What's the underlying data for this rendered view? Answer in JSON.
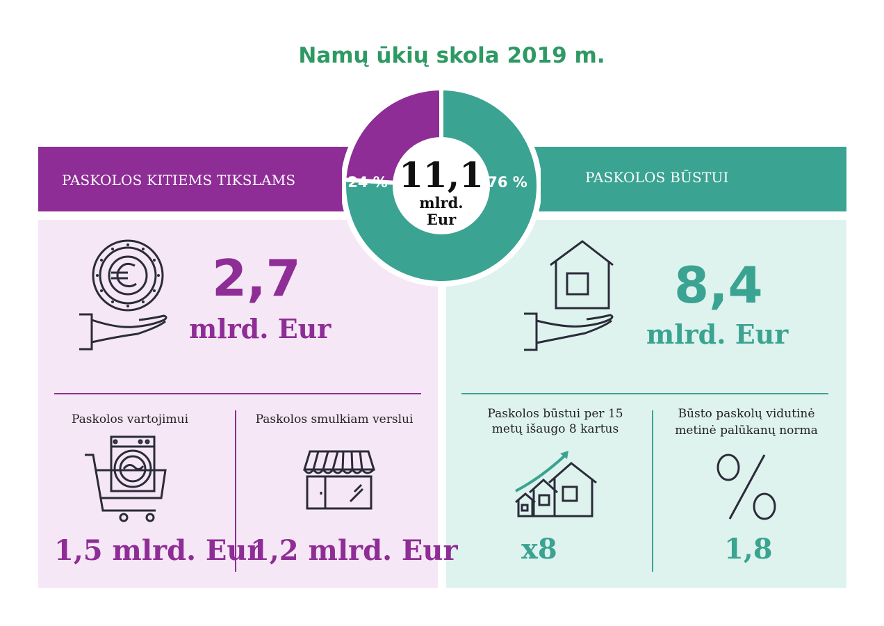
{
  "title": "Namų ūkių skola 2019 m.",
  "colors": {
    "purple": "#8e2d96",
    "teal": "#3aa391",
    "title_green": "#2e9963",
    "panel_purple": "#f5e7f5",
    "panel_teal": "#dff3ee"
  },
  "left": {
    "band_label": "PASKOLOS KITIEMS TIKSLAMS",
    "total_value": "2,7",
    "total_unit": "mlrd. Eur",
    "consumer": {
      "caption": "Paskolos vartojimui",
      "value": "1,5 mlrd. Eur"
    },
    "business": {
      "caption": "Paskolos smulkiam verslui",
      "value": "1,2 mlrd. Eur"
    }
  },
  "right": {
    "band_label": "PASKOLOS BŪSTUI",
    "total_value": "8,4",
    "total_unit": "mlrd. Eur",
    "growth": {
      "caption_line1": "Paskolos būstui per 15",
      "caption_line2": "metų išaugo 8 kartus",
      "value": "x8"
    },
    "rate": {
      "caption_line1": "Būsto paskolų vidutinė",
      "caption_line2": "metinė palūkanų norma",
      "value": "1,8"
    }
  },
  "chart_data": {
    "type": "pie",
    "center_value": "11,1",
    "center_unit_line1": "mlrd.",
    "center_unit_line2": "Eur",
    "slices": [
      {
        "label": "76 %",
        "value": 76,
        "color": "#3aa391"
      },
      {
        "label": "24 %",
        "value": 24,
        "color": "#8e2d96"
      }
    ]
  },
  "icons": [
    "coin-in-hand-icon",
    "house-in-hand-icon",
    "washing-machine-cart-icon",
    "shop-awning-icon",
    "houses-growth-icon",
    "percent-icon"
  ]
}
